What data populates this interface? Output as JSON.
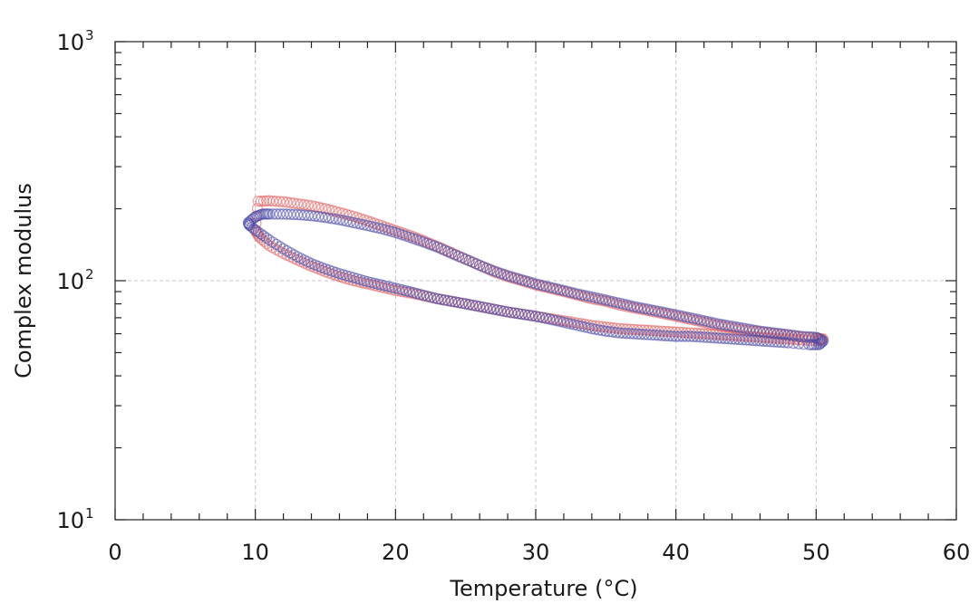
{
  "chart_data": {
    "type": "scatter",
    "title": "",
    "xlabel": "Temperature (°C)",
    "ylabel": "Complex modulus",
    "xlim": [
      0,
      60
    ],
    "ylim": [
      10,
      1000
    ],
    "yscale": "log",
    "grid": true,
    "legend": "none",
    "x_ticks": [
      {
        "value": 0,
        "label": "0"
      },
      {
        "value": 10,
        "label": "10"
      },
      {
        "value": 20,
        "label": "20"
      },
      {
        "value": 30,
        "label": "30"
      },
      {
        "value": 40,
        "label": "40"
      },
      {
        "value": 50,
        "label": "50"
      },
      {
        "value": 60,
        "label": "60"
      }
    ],
    "y_ticks": [
      {
        "value": 10,
        "base": "10",
        "exp": "1"
      },
      {
        "value": 100,
        "base": "10",
        "exp": "2"
      },
      {
        "value": 1000,
        "base": "10",
        "exp": "3"
      }
    ],
    "series": [
      {
        "color": "#e06060",
        "points": [
          [
            10.2,
            215
          ],
          [
            11,
            216
          ],
          [
            12,
            214
          ],
          [
            13,
            210
          ],
          [
            14,
            206
          ],
          [
            15,
            200
          ],
          [
            16,
            193
          ],
          [
            17,
            186
          ],
          [
            18,
            178
          ],
          [
            19,
            170
          ],
          [
            20,
            162
          ],
          [
            21,
            155
          ],
          [
            22,
            147
          ],
          [
            23,
            139
          ],
          [
            24,
            131
          ],
          [
            25,
            123
          ],
          [
            26,
            116
          ],
          [
            27,
            109
          ],
          [
            28,
            104
          ],
          [
            29,
            100
          ],
          [
            30,
            96
          ],
          [
            31,
            93
          ],
          [
            32,
            90
          ],
          [
            33,
            87
          ],
          [
            34,
            84
          ],
          [
            35,
            82
          ],
          [
            36,
            79
          ],
          [
            37,
            77
          ],
          [
            38,
            75
          ],
          [
            39,
            73
          ],
          [
            40,
            71
          ],
          [
            41,
            69
          ],
          [
            42,
            67
          ],
          [
            43,
            65
          ],
          [
            44,
            63.5
          ],
          [
            45,
            62
          ],
          [
            46,
            61
          ],
          [
            47,
            60
          ],
          [
            48,
            59
          ],
          [
            49,
            58
          ],
          [
            50,
            57.5
          ],
          [
            50.5,
            57
          ],
          [
            50.2,
            56
          ],
          [
            49,
            56.5
          ],
          [
            48,
            57
          ],
          [
            47,
            57.5
          ],
          [
            46,
            58
          ],
          [
            45,
            58.5
          ],
          [
            44,
            59
          ],
          [
            43,
            59.5
          ],
          [
            42,
            60
          ],
          [
            41,
            60.5
          ],
          [
            40,
            61
          ],
          [
            39,
            61.5
          ],
          [
            38,
            62
          ],
          [
            37,
            62.5
          ],
          [
            36,
            63
          ],
          [
            35,
            64
          ],
          [
            34,
            65
          ],
          [
            33,
            66.5
          ],
          [
            32,
            68
          ],
          [
            31,
            69.5
          ],
          [
            30,
            71
          ],
          [
            29,
            72.5
          ],
          [
            28,
            74
          ],
          [
            27,
            76
          ],
          [
            26,
            78
          ],
          [
            25,
            80
          ],
          [
            24,
            82
          ],
          [
            23,
            84
          ],
          [
            22,
            86.5
          ],
          [
            21,
            89
          ],
          [
            20,
            91
          ],
          [
            19,
            94
          ],
          [
            18,
            97
          ],
          [
            17,
            100
          ],
          [
            16,
            104
          ],
          [
            15,
            109
          ],
          [
            14,
            115
          ],
          [
            13,
            122
          ],
          [
            12,
            130
          ],
          [
            11,
            140
          ],
          [
            10.3,
            152
          ],
          [
            10,
            162
          ]
        ]
      },
      {
        "color": "#4a4aa8",
        "points": [
          [
            9.5,
            175
          ],
          [
            10,
            185
          ],
          [
            10.5,
            190
          ],
          [
            11,
            190
          ],
          [
            12,
            190
          ],
          [
            13,
            189
          ],
          [
            14,
            187
          ],
          [
            15,
            184
          ],
          [
            16,
            180
          ],
          [
            17,
            175
          ],
          [
            18,
            170
          ],
          [
            19,
            165
          ],
          [
            20,
            159
          ],
          [
            21,
            152
          ],
          [
            22,
            145
          ],
          [
            23,
            138
          ],
          [
            24,
            130
          ],
          [
            25,
            123
          ],
          [
            26,
            116
          ],
          [
            27,
            110
          ],
          [
            28,
            105
          ],
          [
            29,
            101
          ],
          [
            30,
            97
          ],
          [
            31,
            94
          ],
          [
            32,
            91
          ],
          [
            33,
            88
          ],
          [
            34,
            85.5
          ],
          [
            35,
            83
          ],
          [
            36,
            80.5
          ],
          [
            37,
            78
          ],
          [
            38,
            76
          ],
          [
            39,
            74
          ],
          [
            40,
            72
          ],
          [
            41,
            70
          ],
          [
            42,
            68
          ],
          [
            43,
            66
          ],
          [
            44,
            64.5
          ],
          [
            45,
            63
          ],
          [
            46,
            61.5
          ],
          [
            47,
            60.5
          ],
          [
            48,
            59.5
          ],
          [
            49,
            58.5
          ],
          [
            50,
            58
          ],
          [
            50.5,
            56
          ],
          [
            50.2,
            54
          ],
          [
            49.5,
            54
          ],
          [
            48,
            55
          ],
          [
            47,
            55.5
          ],
          [
            46,
            56
          ],
          [
            45,
            56.5
          ],
          [
            44,
            57
          ],
          [
            43,
            57.5
          ],
          [
            42,
            58
          ],
          [
            41,
            58.5
          ],
          [
            40,
            58.5
          ],
          [
            39,
            59
          ],
          [
            38,
            59.5
          ],
          [
            37,
            60
          ],
          [
            36,
            60.5
          ],
          [
            35,
            61.5
          ],
          [
            34,
            63
          ],
          [
            33,
            65
          ],
          [
            32,
            67
          ],
          [
            31,
            69
          ],
          [
            30,
            71
          ],
          [
            29,
            72.5
          ],
          [
            28,
            74
          ],
          [
            27,
            76
          ],
          [
            26,
            78
          ],
          [
            25,
            80
          ],
          [
            24,
            82
          ],
          [
            23,
            84
          ],
          [
            22,
            87
          ],
          [
            21,
            90
          ],
          [
            20,
            93
          ],
          [
            19,
            96
          ],
          [
            18,
            99
          ],
          [
            17,
            103
          ],
          [
            16,
            107
          ],
          [
            15,
            112
          ],
          [
            14,
            118
          ],
          [
            13,
            126
          ],
          [
            12,
            136
          ],
          [
            11,
            148
          ],
          [
            10.2,
            160
          ],
          [
            9.6,
            170
          ]
        ]
      }
    ]
  }
}
